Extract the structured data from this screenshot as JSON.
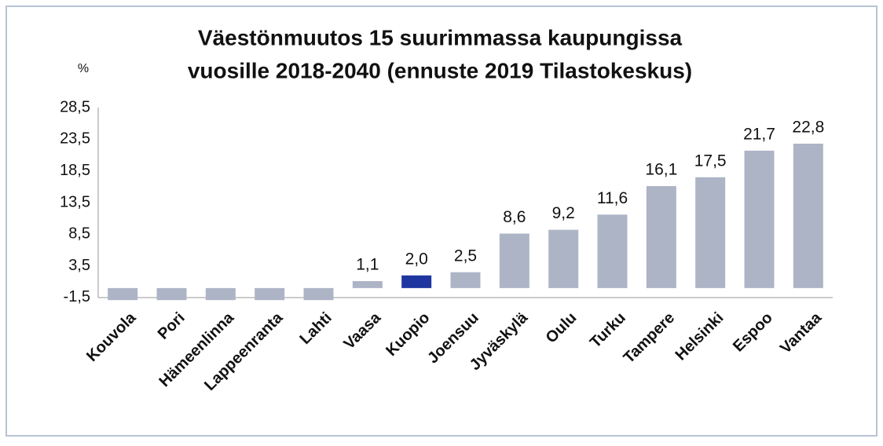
{
  "chart_data": {
    "type": "bar",
    "title": [
      "Väestönmuutos 15 suurimmassa kaupungissa",
      "vuosille 2018-2040 (ennuste 2019 Tilastokeskus)"
    ],
    "y_label": "%",
    "categories": [
      "Kouvola",
      "Pori",
      "Hämeenlinna",
      "Lappeenranta",
      "Lahti",
      "Vaasa",
      "Kuopio",
      "Joensuu",
      "Jyväskylä",
      "Oulu",
      "Turku",
      "Tampere",
      "Helsinki",
      "Espoo",
      "Vantaa"
    ],
    "values": [
      -1.9,
      -1.9,
      -1.9,
      -1.9,
      -1.9,
      1.1,
      2.0,
      2.5,
      8.6,
      9.2,
      11.6,
      16.1,
      17.5,
      21.7,
      22.8
    ],
    "value_labels": [
      null,
      null,
      null,
      null,
      null,
      "1,1",
      "2,0",
      "2,5",
      "8,6",
      "9,2",
      "11,6",
      "16,1",
      "17,5",
      "21,7",
      "22,8"
    ],
    "color": "#adb4c6",
    "colors": [
      null,
      null,
      null,
      null,
      null,
      null,
      "#1f35a0",
      null,
      null,
      null,
      null,
      null,
      null,
      null,
      null
    ],
    "ylim": [
      -2,
      28.5
    ],
    "yticks": [
      {
        "value": -1.5,
        "label": "-1,5"
      },
      {
        "value": 3.5,
        "label": "3,5"
      },
      {
        "value": 8.5,
        "label": "8,5"
      },
      {
        "value": 13.5,
        "label": "13,5"
      },
      {
        "value": 18.5,
        "label": "18,5"
      },
      {
        "value": 23.5,
        "label": "23,5"
      },
      {
        "value": 28.5,
        "label": "28,5"
      }
    ],
    "grid": false
  }
}
